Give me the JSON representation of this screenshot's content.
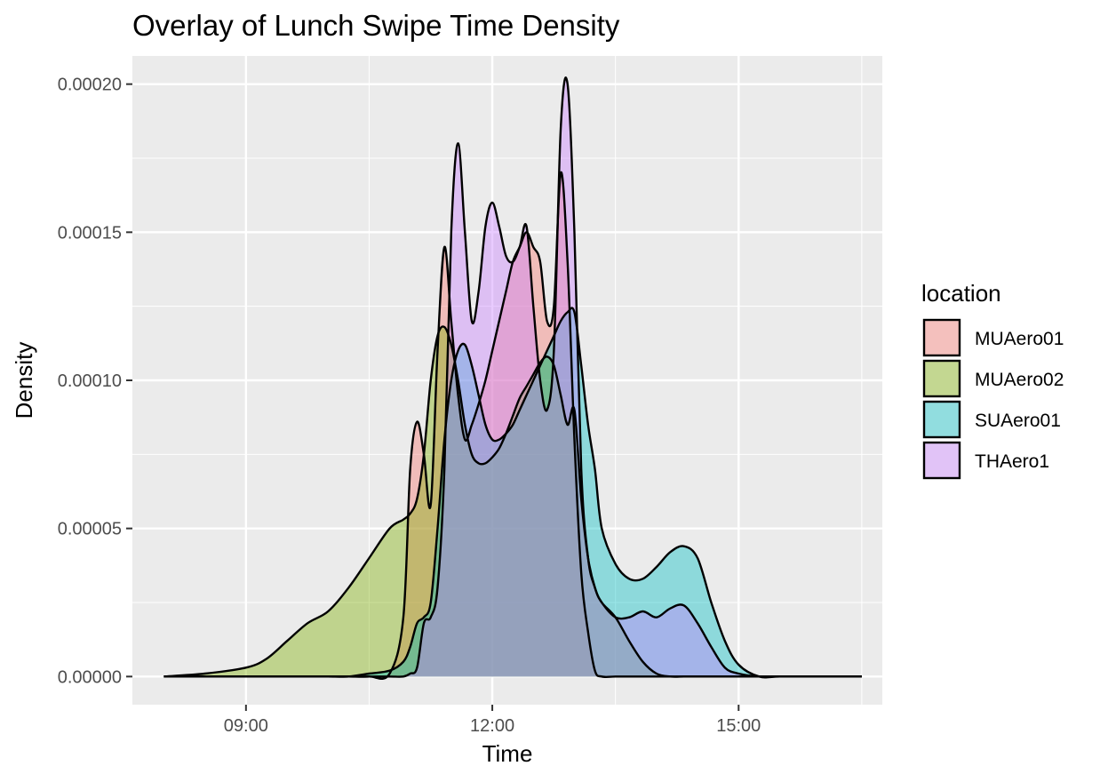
{
  "chart_data": {
    "type": "area",
    "title": "Overlay of Lunch Swipe Time Density",
    "xlabel": "Time",
    "ylabel": "Density",
    "xlim": [
      "07:37",
      "16:45"
    ],
    "ylim": [
      -9.5e-06,
      0.0002095
    ],
    "x_ticks": [
      "09:00",
      "12:00",
      "15:00"
    ],
    "y_ticks": [
      "0.00000",
      "0.00005",
      "0.00010",
      "0.00015",
      "0.00020"
    ],
    "grid": true,
    "legend": {
      "title": "location",
      "position": "right"
    },
    "x": [
      "08:00",
      "08:30",
      "09:00",
      "09:15",
      "09:30",
      "09:45",
      "10:00",
      "10:15",
      "10:30",
      "10:45",
      "10:55",
      "11:00",
      "11:05",
      "11:10",
      "11:15",
      "11:20",
      "11:25",
      "11:30",
      "11:35",
      "11:40",
      "11:45",
      "11:50",
      "11:55",
      "12:00",
      "12:05",
      "12:10",
      "12:15",
      "12:20",
      "12:25",
      "12:30",
      "12:35",
      "12:40",
      "12:45",
      "12:50",
      "12:55",
      "13:00",
      "13:05",
      "13:10",
      "13:15",
      "13:20",
      "13:30",
      "13:40",
      "13:50",
      "14:00",
      "14:10",
      "14:20",
      "14:30",
      "14:40",
      "14:50",
      "15:00",
      "15:15",
      "15:30",
      "16:00",
      "16:30"
    ],
    "series": [
      {
        "name": "MUAero01",
        "color": "#F8766D",
        "values": [
          0,
          0,
          0,
          0,
          0,
          0,
          0,
          0,
          0,
          1e-06,
          2e-05,
          7e-05,
          8.6e-05,
          7.5e-05,
          5.8e-05,
          0.00011,
          0.000145,
          0.00012,
          9.5e-05,
          8e-05,
          8.5e-05,
          9.2e-05,
          0.0001,
          0.00011,
          0.00012,
          0.00013,
          0.00014,
          0.000145,
          0.00015,
          0.000145,
          0.00014,
          0.00012,
          0.000125,
          0.00017,
          0.00014,
          8e-05,
          3.5e-05,
          1.5e-05,
          2e-06,
          0,
          0,
          0,
          0,
          0,
          0,
          0,
          0,
          0,
          0,
          0,
          0,
          0,
          0,
          0
        ]
      },
      {
        "name": "MUAero02",
        "color": "#7CAE00",
        "values": [
          0,
          1e-06,
          3e-06,
          6e-06,
          1.2e-05,
          1.8e-05,
          2.2e-05,
          3e-05,
          4e-05,
          5e-05,
          5.3e-05,
          5.5e-05,
          6e-05,
          7.5e-05,
          0.0001,
          0.000115,
          0.000118,
          0.000112,
          0.0001,
          8.5e-05,
          7.5e-05,
          7.2e-05,
          7.2e-05,
          7.4e-05,
          7.7e-05,
          8.2e-05,
          8.8e-05,
          9.4e-05,
          9.8e-05,
          0.000102,
          0.000106,
          0.000108,
          0.000105,
          9.5e-05,
          8.5e-05,
          9e-05,
          6e-05,
          4e-05,
          3e-05,
          2.5e-05,
          2e-05,
          1.2e-05,
          5e-06,
          1e-06,
          0,
          0,
          0,
          0,
          0,
          0,
          0,
          0,
          0,
          0
        ]
      },
      {
        "name": "SUAero01",
        "color": "#00BFC4",
        "values": [
          0,
          0,
          0,
          0,
          0,
          0,
          0,
          0,
          1e-06,
          2e-06,
          5e-06,
          1e-05,
          1.8e-05,
          2e-05,
          2.5e-05,
          5e-05,
          8e-05,
          0.0001,
          0.00011,
          0.000112,
          0.000105,
          9.5e-05,
          8.5e-05,
          8e-05,
          8e-05,
          8.2e-05,
          8.5e-05,
          9e-05,
          9.5e-05,
          0.0001,
          0.000105,
          0.00011,
          0.000115,
          0.00012,
          0.000123,
          0.000123,
          0.000105,
          8.5e-05,
          7e-05,
          5e-05,
          3.8e-05,
          3.3e-05,
          3.3e-05,
          3.7e-05,
          4.2e-05,
          4.4e-05,
          4e-05,
          2.5e-05,
          1.2e-05,
          4e-06,
          0,
          0,
          0,
          0
        ]
      },
      {
        "name": "THAero1",
        "color": "#C77CFF",
        "values": [
          0,
          0,
          0,
          0,
          0,
          0,
          0,
          0,
          0,
          0,
          0,
          1e-06,
          3e-06,
          1.8e-05,
          2e-05,
          3e-05,
          7e-05,
          0.00015,
          0.00018,
          0.00015,
          0.00012,
          0.00013,
          0.000152,
          0.00016,
          0.000152,
          0.000142,
          0.00014,
          0.000145,
          0.000152,
          0.000125,
          0.0001,
          9e-05,
          0.00011,
          0.000185,
          0.0002,
          0.00015,
          7e-05,
          4e-05,
          3e-05,
          2.5e-05,
          2e-05,
          2e-05,
          2.2e-05,
          2e-05,
          2.3e-05,
          2.4e-05,
          1.8e-05,
          1e-05,
          3e-06,
          1e-06,
          0,
          0,
          0,
          0
        ]
      }
    ]
  }
}
